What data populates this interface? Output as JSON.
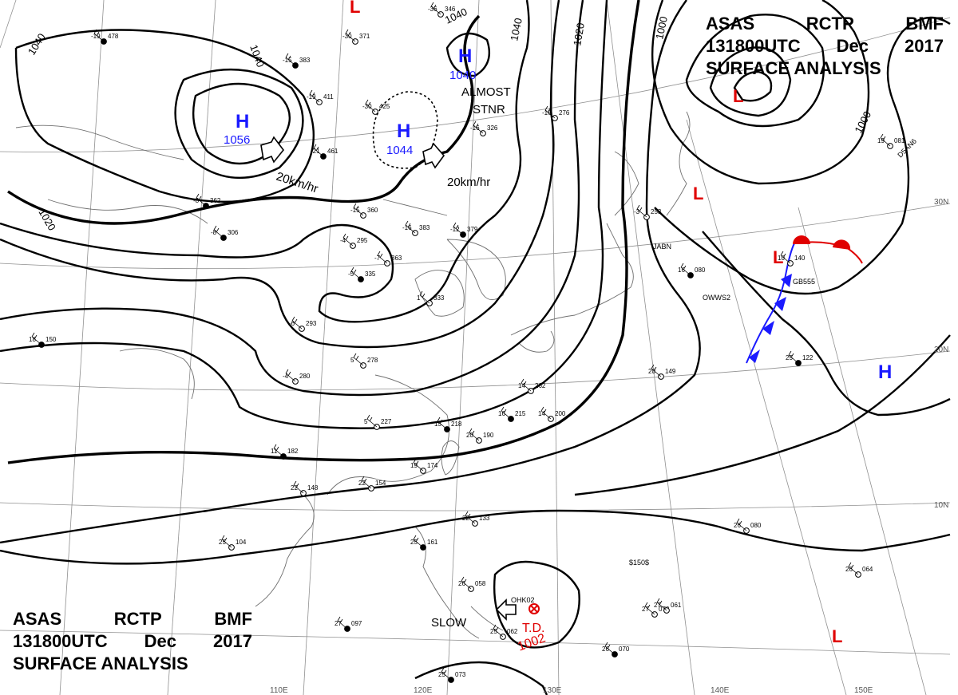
{
  "header": {
    "line1": [
      "ASAS",
      "RCTP",
      "BMF"
    ],
    "line2": [
      "131800UTC",
      "Dec",
      "2017"
    ],
    "line3": "SURFACE ANALYSIS"
  },
  "isobar_labels": [
    "1040",
    "1040",
    "1040",
    "1040",
    "1020",
    "1000",
    "1000",
    "1020"
  ],
  "latitude_labels": [
    "30N",
    "20N",
    "10N"
  ],
  "longitude_labels": [
    "110E",
    "120E",
    "130E",
    "140E",
    "150E"
  ],
  "high_centers": [
    {
      "symbol": "H",
      "value": "1056",
      "color": "#1a1aff"
    },
    {
      "symbol": "H",
      "value": "1044",
      "color": "#1a1aff"
    },
    {
      "symbol": "H",
      "value": "1040",
      "color": "#1a1aff"
    },
    {
      "symbol": "H",
      "value": "",
      "color": "#1a1aff"
    }
  ],
  "low_markers": [
    {
      "symbol": "L",
      "color": "#e00000"
    },
    {
      "symbol": "L",
      "color": "#e00000"
    },
    {
      "symbol": "L",
      "color": "#e00000"
    },
    {
      "symbol": "L",
      "color": "#e00000"
    },
    {
      "symbol": "L",
      "color": "#e00000"
    }
  ],
  "tropical_depression": {
    "label": "T.D.",
    "pressure": "1002",
    "color": "#e00000"
  },
  "movement_notes": [
    "20km/hr",
    "20km/hr",
    "ALMOST",
    "STNR",
    "SLOW"
  ],
  "station_plots": [
    {
      "p": "383",
      "t": "-15"
    },
    {
      "p": "371",
      "t": "-30"
    },
    {
      "p": "346",
      "t": "-36"
    },
    {
      "p": "478",
      "t": "-19"
    },
    {
      "p": "411",
      "t": "-19"
    },
    {
      "p": "425",
      "t": "-30"
    },
    {
      "p": "461",
      "t": "-21"
    },
    {
      "p": "326",
      "t": "-16"
    },
    {
      "p": "276",
      "t": "-16"
    },
    {
      "p": "362",
      "t": "-8"
    },
    {
      "p": "360",
      "t": "-15"
    },
    {
      "p": "383",
      "t": "-16"
    },
    {
      "p": "379",
      "t": "-12"
    },
    {
      "p": "295",
      "t": "-4"
    },
    {
      "p": "363",
      "t": "-7"
    },
    {
      "p": "335",
      "t": "-5"
    },
    {
      "p": "333",
      "t": "1"
    },
    {
      "p": "253",
      "t": "-3"
    },
    {
      "p": "306",
      "t": "-8"
    },
    {
      "p": "280",
      "t": "-4"
    },
    {
      "p": "293",
      "t": "-6"
    },
    {
      "p": "150",
      "t": "18"
    },
    {
      "p": "278",
      "t": "5"
    },
    {
      "p": "227",
      "t": "5"
    },
    {
      "p": "218",
      "t": "15"
    },
    {
      "p": "190",
      "t": "20"
    },
    {
      "p": "174",
      "t": "19"
    },
    {
      "p": "182",
      "t": "11"
    },
    {
      "p": "148",
      "t": "22"
    },
    {
      "p": "154",
      "t": "22"
    },
    {
      "p": "161",
      "t": "25"
    },
    {
      "p": "104",
      "t": "25"
    },
    {
      "p": "133",
      "t": "22"
    },
    {
      "p": "097",
      "t": "27"
    },
    {
      "p": "058",
      "t": "26"
    },
    {
      "p": "062",
      "t": "25"
    },
    {
      "p": "073",
      "t": "25"
    },
    {
      "p": "073",
      "t": "27"
    },
    {
      "p": "149",
      "t": "20"
    },
    {
      "p": "122",
      "t": "25"
    },
    {
      "p": "080",
      "t": "26"
    },
    {
      "p": "061",
      "t": "27"
    },
    {
      "p": "070",
      "t": "26"
    },
    {
      "p": "064",
      "t": "26"
    },
    {
      "p": "140",
      "t": "10"
    },
    {
      "p": "080",
      "t": "16"
    },
    {
      "p": "081",
      "t": "19"
    },
    {
      "p": "200",
      "t": "14"
    },
    {
      "p": "215",
      "t": "16"
    },
    {
      "p": "262",
      "t": "14"
    }
  ],
  "station_ids": [
    "JABN",
    "OWWS2",
    "GB555",
    "D5AN6",
    "OHK02",
    "$150$"
  ],
  "colors": {
    "isobar": "#000000",
    "cold_front": "#1a1aff",
    "warm_front": "#e00000",
    "grid": "#909090",
    "coast": "#707070"
  }
}
